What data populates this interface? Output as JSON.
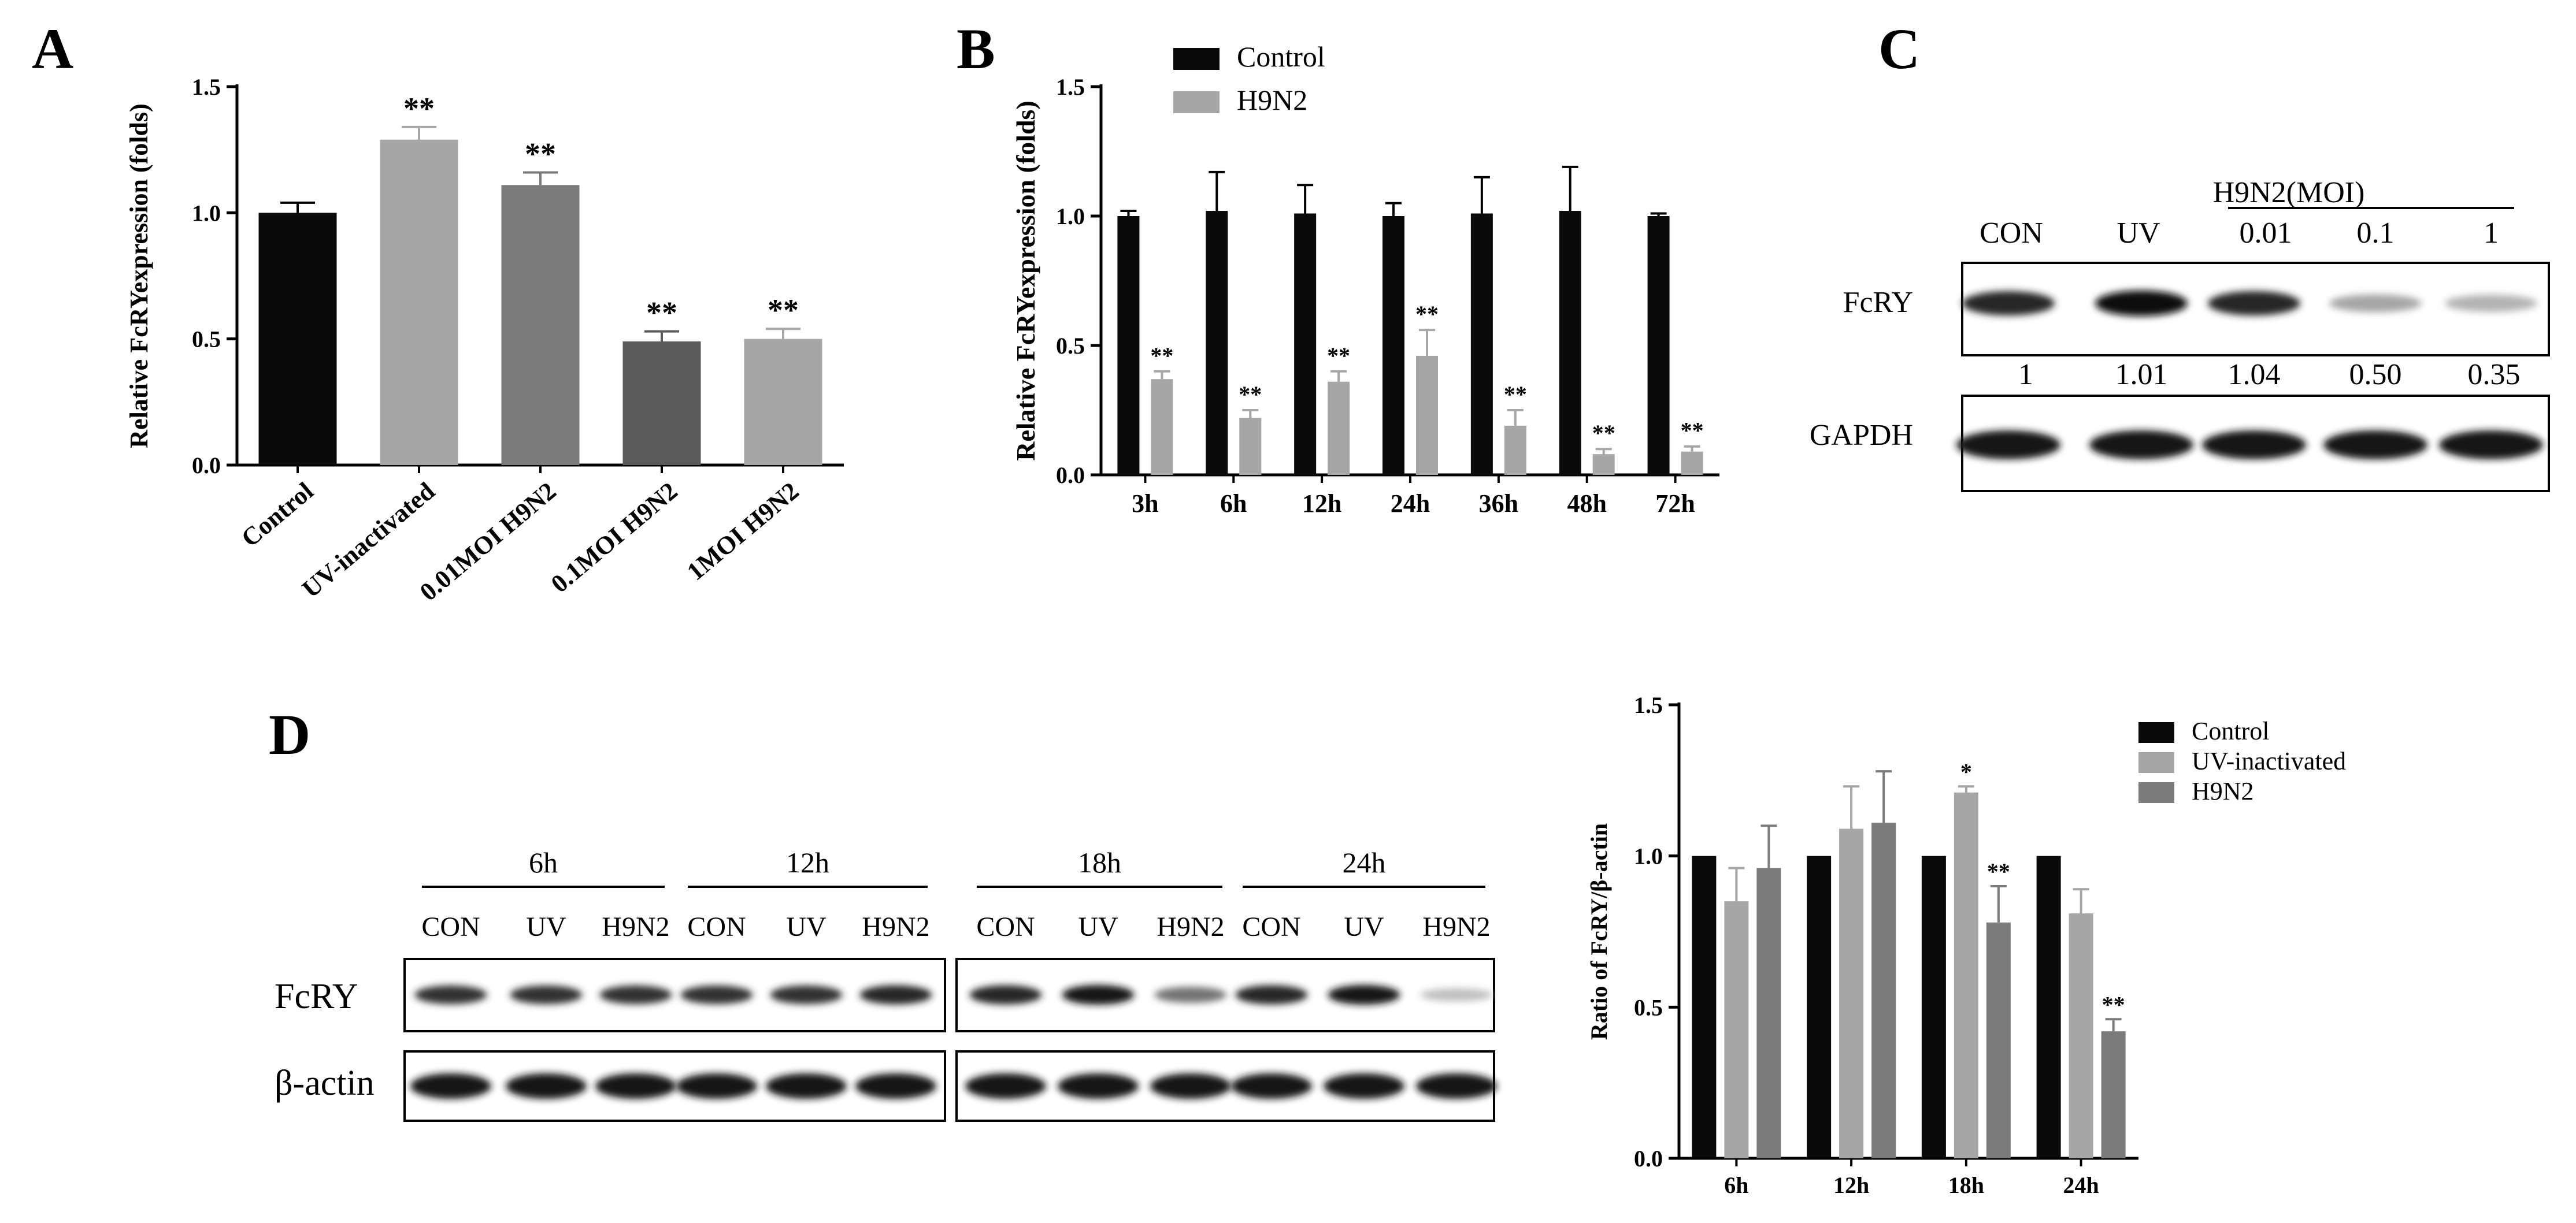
{
  "panels": {
    "a": "A",
    "b": "B",
    "c": "C",
    "d": "D"
  },
  "colors": {
    "control": "#0a0a0a",
    "uv": "#a6a6a6",
    "moi001": "#7b7b7b",
    "moi01": "#5a5a5a",
    "moi1": "#a6a6a6",
    "h9n2_b": "#a6a6a6",
    "h9n2_d": "#7b7b7b"
  },
  "chart_data": [
    {
      "id": "panel-a",
      "type": "bar",
      "categories": [
        "Control",
        "UV-inactivated",
        "0.01MOI H9N2",
        "0.1MOI H9N2",
        "1MOI H9N2"
      ],
      "values": [
        1.0,
        1.29,
        1.11,
        0.49,
        0.5
      ],
      "errors": [
        0.04,
        0.05,
        0.05,
        0.04,
        0.04
      ],
      "significance": [
        "",
        "**",
        "**",
        "**",
        "**"
      ],
      "ylabel": "Relative FcRYexpression (folds)",
      "ylim": [
        0,
        1.5
      ],
      "yticks": [
        "0.0",
        "0.5",
        "1.0",
        "1.5"
      ]
    },
    {
      "id": "panel-b",
      "type": "bar",
      "categories": [
        "3h",
        "6h",
        "12h",
        "24h",
        "36h",
        "48h",
        "72h"
      ],
      "series": [
        {
          "name": "Control",
          "values": [
            1.0,
            1.02,
            1.01,
            1.0,
            1.01,
            1.02,
            1.0
          ],
          "errors": [
            0.02,
            0.15,
            0.11,
            0.05,
            0.14,
            0.17,
            0.01
          ],
          "significance": [
            "",
            "",
            "",
            "",
            "",
            "",
            ""
          ]
        },
        {
          "name": "H9N2",
          "values": [
            0.37,
            0.22,
            0.36,
            0.46,
            0.19,
            0.08,
            0.09
          ],
          "errors": [
            0.03,
            0.03,
            0.04,
            0.1,
            0.06,
            0.02,
            0.02
          ],
          "significance": [
            "**",
            "**",
            "**",
            "**",
            "**",
            "**",
            "**"
          ]
        }
      ],
      "ylabel": "Relative FcRYexpression (folds)",
      "ylim": [
        0,
        1.5
      ],
      "yticks": [
        "0.0",
        "0.5",
        "1.0",
        "1.5"
      ],
      "legend": "top-left"
    },
    {
      "id": "panel-d",
      "type": "bar",
      "categories": [
        "6h",
        "12h",
        "18h",
        "24h"
      ],
      "series": [
        {
          "name": "Control",
          "values": [
            1.0,
            1.0,
            1.0,
            1.0
          ],
          "errors": [
            0,
            0,
            0,
            0
          ],
          "significance": [
            "",
            "",
            "",
            ""
          ]
        },
        {
          "name": "UV-inactivated",
          "values": [
            0.85,
            1.09,
            1.21,
            0.81
          ],
          "errors": [
            0.11,
            0.14,
            0.02,
            0.08
          ],
          "significance": [
            "",
            "",
            "*",
            ""
          ]
        },
        {
          "name": "H9N2",
          "values": [
            0.96,
            1.11,
            0.78,
            0.42
          ],
          "errors": [
            0.14,
            0.17,
            0.12,
            0.04
          ],
          "significance": [
            "",
            "",
            "**",
            "**"
          ]
        }
      ],
      "ylabel": "Ratio of FcRY/β-actin",
      "ylim": [
        0,
        1.5
      ],
      "yticks": [
        "0.0",
        "0.5",
        "1.0",
        "1.5"
      ],
      "legend": "top-right"
    }
  ],
  "blot_c": {
    "group_label": "H9N2(MOI)",
    "lanes": [
      "CON",
      "UV",
      "0.01",
      "0.1",
      "1"
    ],
    "rows": [
      "FcRY",
      "GAPDH"
    ],
    "quant": [
      "1",
      "1.01",
      "1.04",
      "0.50",
      "0.35"
    ],
    "fcry_intensity": [
      0.85,
      0.95,
      0.85,
      0.35,
      0.3
    ]
  },
  "blot_d": {
    "groups": [
      "6h",
      "12h",
      "18h",
      "24h"
    ],
    "lanes": [
      "CON",
      "UV",
      "H9N2",
      "CON",
      "UV",
      "H9N2",
      "CON",
      "UV",
      "H9N2",
      "CON",
      "UV",
      "H9N2"
    ],
    "rows": [
      "FcRY",
      "β-actin"
    ],
    "fcry_intensity": [
      0.8,
      0.8,
      0.8,
      0.8,
      0.8,
      0.85,
      0.85,
      0.9,
      0.55,
      0.85,
      0.9,
      0.25
    ]
  }
}
